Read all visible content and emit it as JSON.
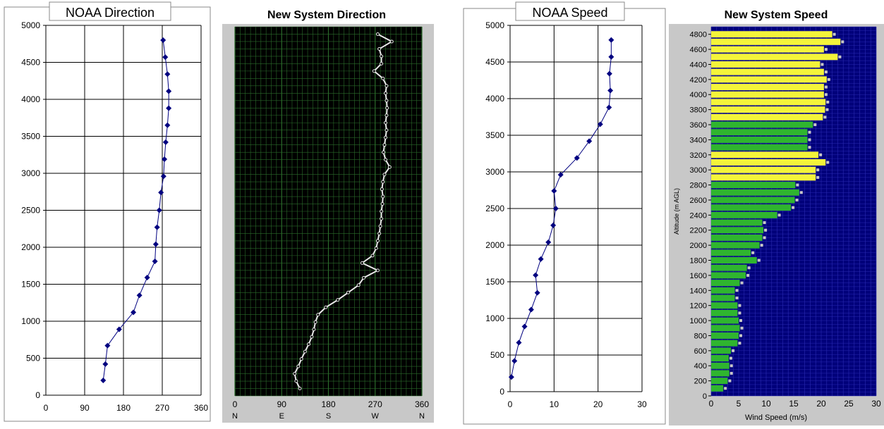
{
  "chart_data": [
    {
      "type": "scatter",
      "title": "NOAA Direction",
      "xlim": [
        0,
        360
      ],
      "ylim": [
        0,
        5000
      ],
      "x_ticks": [
        "0",
        "90",
        "180",
        "270",
        "360"
      ],
      "y_ticks": [
        "0",
        "500",
        "1000",
        "1500",
        "2000",
        "2500",
        "3000",
        "3500",
        "4000",
        "4500",
        "5000"
      ],
      "grid": true,
      "series": [
        {
          "color": "#000080",
          "points": [
            [
              133,
              200
            ],
            [
              138,
              420
            ],
            [
              143,
              670
            ],
            [
              170,
              890
            ],
            [
              203,
              1120
            ],
            [
              217,
              1350
            ],
            [
              235,
              1590
            ],
            [
              253,
              1810
            ],
            [
              255,
              2040
            ],
            [
              258,
              2270
            ],
            [
              263,
              2500
            ],
            [
              267,
              2740
            ],
            [
              273,
              2960
            ],
            [
              275,
              3190
            ],
            [
              278,
              3420
            ],
            [
              282,
              3650
            ],
            [
              285,
              3880
            ],
            [
              285,
              4110
            ],
            [
              282,
              4340
            ],
            [
              277,
              4570
            ],
            [
              272,
              4800
            ]
          ]
        }
      ]
    },
    {
      "type": "line",
      "title": "New System Direction",
      "xlim": [
        0,
        360
      ],
      "ylim": [
        0,
        5000
      ],
      "x_ticks": [
        "0",
        "90",
        "180",
        "270",
        "360"
      ],
      "x_cardinals": [
        "N",
        "E",
        "S",
        "W",
        "N"
      ],
      "grid": true,
      "colors": {
        "background": "#000000",
        "grid": "#2a6a2a",
        "line": "#e8e8e8"
      },
      "series": [
        {
          "points": [
            [
              125,
              100
            ],
            [
              118,
              200
            ],
            [
              115,
              300
            ],
            [
              122,
              400
            ],
            [
              128,
              500
            ],
            [
              135,
              600
            ],
            [
              142,
              700
            ],
            [
              148,
              800
            ],
            [
              152,
              900
            ],
            [
              155,
              1000
            ],
            [
              160,
              1100
            ],
            [
              175,
              1200
            ],
            [
              198,
              1300
            ],
            [
              218,
              1400
            ],
            [
              238,
              1500
            ],
            [
              248,
              1600
            ],
            [
              275,
              1700
            ],
            [
              245,
              1800
            ],
            [
              265,
              1900
            ],
            [
              272,
              2000
            ],
            [
              275,
              2100
            ],
            [
              278,
              2200
            ],
            [
              280,
              2300
            ],
            [
              282,
              2400
            ],
            [
              282,
              2500
            ],
            [
              284,
              2600
            ],
            [
              285,
              2700
            ],
            [
              283,
              2800
            ],
            [
              285,
              2900
            ],
            [
              288,
              3000
            ],
            [
              298,
              3100
            ],
            [
              290,
              3200
            ],
            [
              286,
              3300
            ],
            [
              288,
              3400
            ],
            [
              290,
              3500
            ],
            [
              292,
              3600
            ],
            [
              290,
              3700
            ],
            [
              292,
              3800
            ],
            [
              293,
              3900
            ],
            [
              292,
              4000
            ],
            [
              290,
              4100
            ],
            [
              292,
              4200
            ],
            [
              285,
              4300
            ],
            [
              268,
              4400
            ],
            [
              282,
              4500
            ],
            [
              282,
              4600
            ],
            [
              278,
              4700
            ],
            [
              302,
              4800
            ],
            [
              275,
              4900
            ]
          ]
        }
      ]
    },
    {
      "type": "scatter",
      "title": "NOAA Speed",
      "xlim": [
        0,
        30
      ],
      "ylim": [
        0,
        5000
      ],
      "x_ticks": [
        "0",
        "10",
        "20",
        "30"
      ],
      "y_ticks": [
        "0",
        "500",
        "1000",
        "1500",
        "2000",
        "2500",
        "3000",
        "3500",
        "4000",
        "4500",
        "5000"
      ],
      "grid": true,
      "series": [
        {
          "color": "#000080",
          "points": [
            [
              0.3,
              200
            ],
            [
              1.0,
              420
            ],
            [
              2.0,
              670
            ],
            [
              3.3,
              890
            ],
            [
              4.8,
              1120
            ],
            [
              6.2,
              1350
            ],
            [
              5.8,
              1590
            ],
            [
              7.0,
              1810
            ],
            [
              8.7,
              2040
            ],
            [
              9.8,
              2270
            ],
            [
              10.4,
              2500
            ],
            [
              10.0,
              2740
            ],
            [
              11.5,
              2960
            ],
            [
              15.2,
              3190
            ],
            [
              18.0,
              3420
            ],
            [
              20.5,
              3650
            ],
            [
              22.5,
              3880
            ],
            [
              22.8,
              4110
            ],
            [
              22.6,
              4340
            ],
            [
              23.0,
              4570
            ],
            [
              23.0,
              4800
            ]
          ]
        }
      ]
    },
    {
      "type": "bar",
      "orientation": "horizontal",
      "title": "New System Speed",
      "xlabel": "Wind Speed (m/s)",
      "ylabel": "Altitude (m AGL)",
      "xlim": [
        0,
        30
      ],
      "x_ticks": [
        "0",
        "5",
        "10",
        "15",
        "20",
        "25",
        "30"
      ],
      "y_tick_labels": [
        "0",
        "200",
        "400",
        "600",
        "800",
        "1000",
        "1200",
        "1400",
        "1600",
        "1800",
        "2000",
        "2200",
        "2400",
        "2600",
        "2800",
        "3000",
        "3200",
        "3400",
        "3600",
        "3800",
        "4000",
        "4200",
        "4400",
        "4600",
        "4800"
      ],
      "colors": {
        "background": "#00007a",
        "grid": "#2a2ab0",
        "green": "#2fb52f",
        "yellow": "#f4f43a",
        "marker": "#c8c8c8"
      },
      "bars": [
        {
          "alt": 100,
          "value": 2.2,
          "color": "green"
        },
        {
          "alt": 200,
          "value": 3.0,
          "color": "green"
        },
        {
          "alt": 300,
          "value": 3.3,
          "color": "green"
        },
        {
          "alt": 400,
          "value": 3.3,
          "color": "green"
        },
        {
          "alt": 500,
          "value": 3.2,
          "color": "green"
        },
        {
          "alt": 600,
          "value": 3.6,
          "color": "green"
        },
        {
          "alt": 700,
          "value": 4.8,
          "color": "green"
        },
        {
          "alt": 800,
          "value": 5.0,
          "color": "green"
        },
        {
          "alt": 900,
          "value": 5.2,
          "color": "green"
        },
        {
          "alt": 1000,
          "value": 5.0,
          "color": "green"
        },
        {
          "alt": 1100,
          "value": 4.8,
          "color": "green"
        },
        {
          "alt": 1200,
          "value": 4.8,
          "color": "green"
        },
        {
          "alt": 1300,
          "value": 4.3,
          "color": "green"
        },
        {
          "alt": 1400,
          "value": 4.3,
          "color": "green"
        },
        {
          "alt": 1500,
          "value": 5.2,
          "color": "green"
        },
        {
          "alt": 1600,
          "value": 6.3,
          "color": "green"
        },
        {
          "alt": 1700,
          "value": 6.5,
          "color": "green"
        },
        {
          "alt": 1800,
          "value": 8.3,
          "color": "green"
        },
        {
          "alt": 1900,
          "value": 7.2,
          "color": "green"
        },
        {
          "alt": 2000,
          "value": 8.8,
          "color": "green"
        },
        {
          "alt": 2100,
          "value": 9.3,
          "color": "green"
        },
        {
          "alt": 2200,
          "value": 9.5,
          "color": "green"
        },
        {
          "alt": 2300,
          "value": 9.3,
          "color": "green"
        },
        {
          "alt": 2400,
          "value": 12.0,
          "color": "green"
        },
        {
          "alt": 2500,
          "value": 14.5,
          "color": "green"
        },
        {
          "alt": 2600,
          "value": 15.2,
          "color": "green"
        },
        {
          "alt": 2700,
          "value": 16.0,
          "color": "green"
        },
        {
          "alt": 2800,
          "value": 15.3,
          "color": "green"
        },
        {
          "alt": 2900,
          "value": 19.0,
          "color": "yellow"
        },
        {
          "alt": 3000,
          "value": 19.0,
          "color": "yellow"
        },
        {
          "alt": 3100,
          "value": 20.8,
          "color": "yellow"
        },
        {
          "alt": 3200,
          "value": 19.5,
          "color": "yellow"
        },
        {
          "alt": 3300,
          "value": 17.5,
          "color": "green"
        },
        {
          "alt": 3400,
          "value": 17.5,
          "color": "green"
        },
        {
          "alt": 3500,
          "value": 17.5,
          "color": "green"
        },
        {
          "alt": 3600,
          "value": 18.5,
          "color": "green"
        },
        {
          "alt": 3700,
          "value": 20.3,
          "color": "yellow"
        },
        {
          "alt": 3800,
          "value": 20.7,
          "color": "yellow"
        },
        {
          "alt": 3900,
          "value": 20.8,
          "color": "yellow"
        },
        {
          "alt": 4000,
          "value": 20.5,
          "color": "yellow"
        },
        {
          "alt": 4100,
          "value": 20.5,
          "color": "yellow"
        },
        {
          "alt": 4200,
          "value": 21.0,
          "color": "yellow"
        },
        {
          "alt": 4300,
          "value": 20.5,
          "color": "yellow"
        },
        {
          "alt": 4400,
          "value": 19.8,
          "color": "yellow"
        },
        {
          "alt": 4500,
          "value": 23.0,
          "color": "yellow"
        },
        {
          "alt": 4600,
          "value": 20.5,
          "color": "yellow"
        },
        {
          "alt": 4700,
          "value": 23.5,
          "color": "yellow"
        },
        {
          "alt": 4800,
          "value": 22.0,
          "color": "yellow"
        }
      ]
    }
  ]
}
